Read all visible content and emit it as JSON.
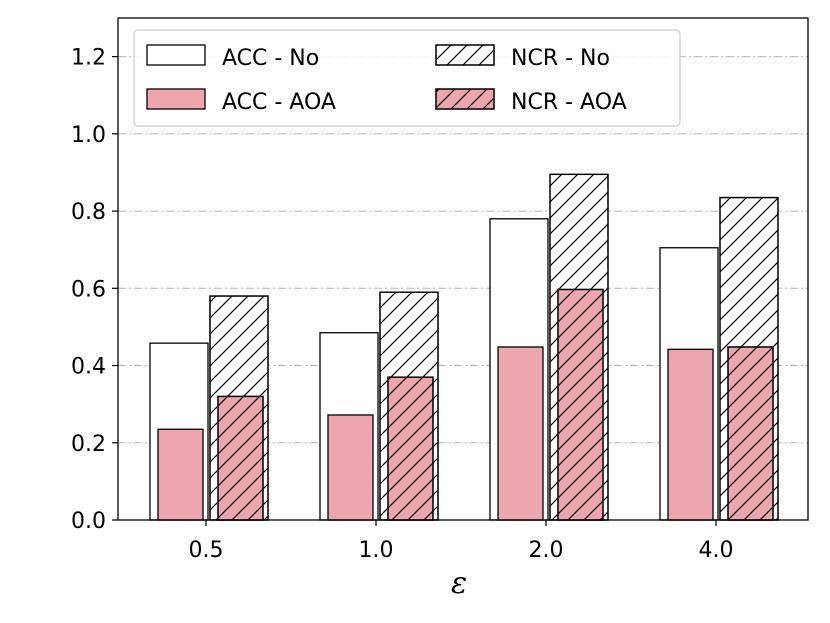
{
  "chart_data": {
    "type": "bar",
    "title": "",
    "xlabel": "ε",
    "ylabel": "",
    "categories": [
      "0.5",
      "1.0",
      "2.0",
      "4.0"
    ],
    "ylim": [
      0,
      1.3
    ],
    "yticks": [
      "0.0",
      "0.2",
      "0.4",
      "0.6",
      "0.8",
      "1.0",
      "1.2"
    ],
    "grid": "horizontal dash-dot",
    "legend_position": "top-left",
    "series": [
      {
        "name": "ACC - No",
        "values": [
          0.458,
          0.485,
          0.78,
          0.705
        ],
        "fill": "#ffffff",
        "hatch": false,
        "group": "wide-left"
      },
      {
        "name": "NCR - No",
        "values": [
          0.58,
          0.59,
          0.895,
          0.835
        ],
        "fill": "#ffffff",
        "hatch": true,
        "group": "wide-right"
      },
      {
        "name": "ACC - AOA",
        "values": [
          0.235,
          0.272,
          0.448,
          0.442
        ],
        "fill": "#eda5ae",
        "hatch": false,
        "group": "narrow-left"
      },
      {
        "name": "NCR - AOA",
        "values": [
          0.32,
          0.37,
          0.597,
          0.448
        ],
        "fill": "#eda5ae",
        "hatch": true,
        "group": "narrow-right"
      }
    ],
    "legend": [
      {
        "label": "ACC - No",
        "series": 0
      },
      {
        "label": "NCR - No",
        "series": 1
      },
      {
        "label": "ACC - AOA",
        "series": 2
      },
      {
        "label": "NCR - AOA",
        "series": 3
      }
    ]
  }
}
